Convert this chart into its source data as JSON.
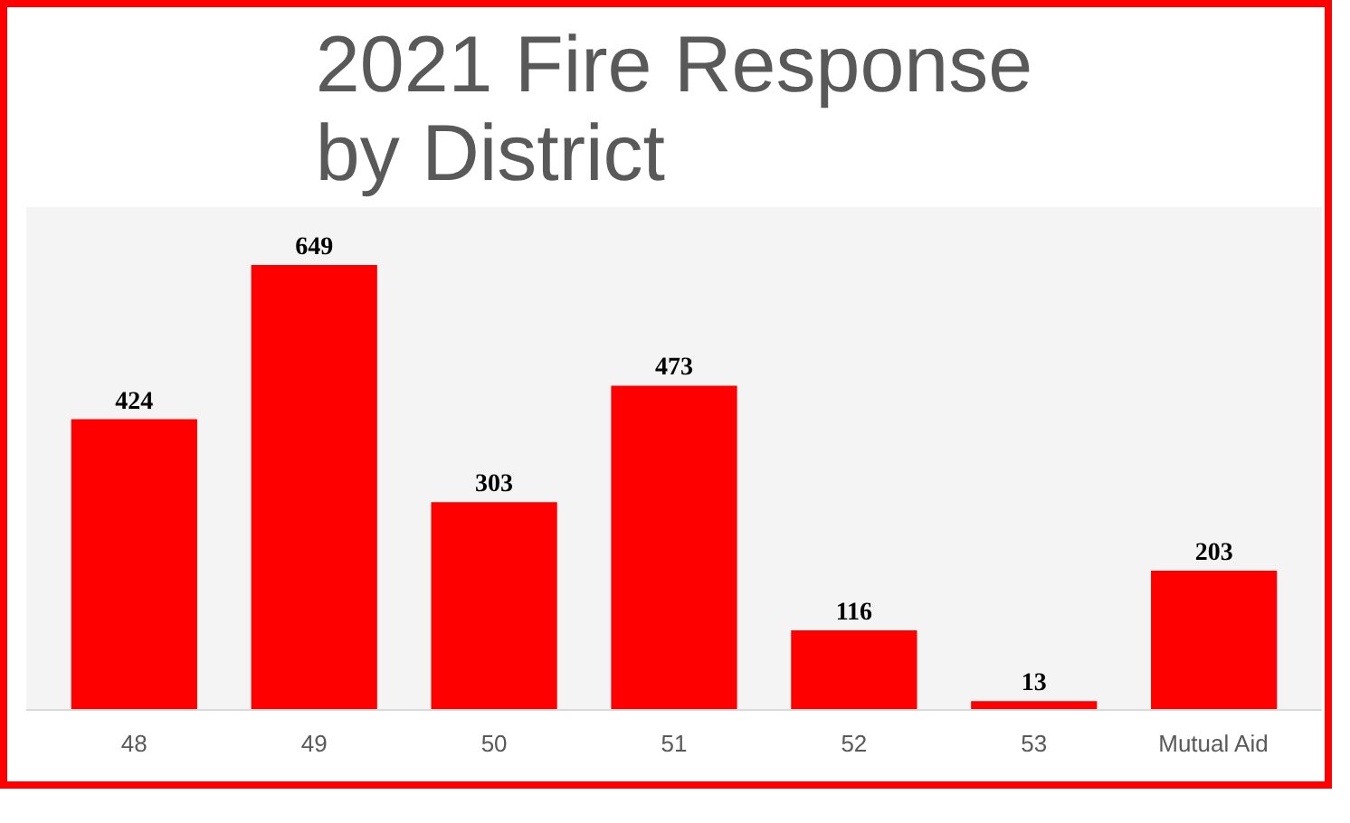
{
  "chart_data": {
    "type": "bar",
    "title": "2021 Fire Response by District",
    "categories": [
      "48",
      "49",
      "50",
      "51",
      "52",
      "53",
      "Mutual Aid"
    ],
    "values": [
      424,
      649,
      303,
      473,
      116,
      13,
      203
    ],
    "color": "#ff0000",
    "data_labels": true,
    "grid": false
  }
}
